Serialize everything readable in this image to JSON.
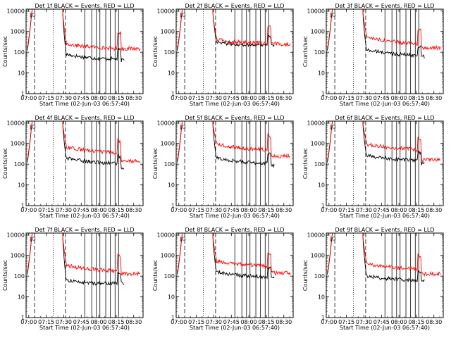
{
  "chart_data": [
    {
      "type": "line",
      "title": "Det 1f BLACK = Events, RED = LLD",
      "xlabel": "Start Time (02-Jun-03 06:57:40)",
      "ylabel": "Counts/sec",
      "events_level": [
        60,
        50,
        48,
        40
      ],
      "lld_level": [
        200,
        170,
        150,
        150
      ]
    },
    {
      "type": "line",
      "title": "Det 2f BLACK = Events, RED = LLD",
      "xlabel": "Start Time (02-Jun-03 06:57:40)",
      "ylabel": "Counts/sec",
      "events_level": [
        250,
        230,
        230,
        200
      ],
      "lld_level": [
        320,
        290,
        270,
        250
      ]
    },
    {
      "type": "line",
      "title": "Det 3f BLACK = Events, RED = LLD",
      "xlabel": "Start Time (02-Jun-03 06:57:40)",
      "ylabel": "Counts/sec",
      "events_level": [
        100,
        80,
        70,
        60
      ],
      "lld_level": [
        400,
        300,
        250,
        160
      ]
    },
    {
      "type": "line",
      "title": "Det 4f BLACK = Events, RED = LLD",
      "xlabel": "Start Time (02-Jun-03 06:57:40)",
      "ylabel": "Counts/sec",
      "events_level": [
        150,
        120,
        110,
        60
      ],
      "lld_level": [
        500,
        400,
        350,
        140
      ]
    },
    {
      "type": "line",
      "title": "Det 5f BLACK = Events, RED = LLD",
      "xlabel": "Start Time (02-Jun-03 06:57:40)",
      "ylabel": "Counts/sec",
      "events_level": [
        150,
        120,
        110,
        90
      ],
      "lld_level": [
        700,
        550,
        500,
        250
      ]
    },
    {
      "type": "line",
      "title": "Det 6f BLACK = Events, RED = LLD",
      "xlabel": "Start Time (02-Jun-03 06:57:40)",
      "ylabel": "Counts/sec",
      "events_level": [
        200,
        170,
        150,
        100
      ],
      "lld_level": [
        700,
        600,
        500,
        160
      ]
    },
    {
      "type": "line",
      "title": "Det 7f BLACK = Events, RED = LLD",
      "xlabel": "Start Time (02-Jun-03 06:57:40)",
      "ylabel": "Counts/sec",
      "events_level": [
        50,
        45,
        45,
        45
      ],
      "lld_level": [
        250,
        200,
        180,
        130
      ]
    },
    {
      "type": "line",
      "title": "Det 8f BLACK = Events, RED = LLD",
      "xlabel": "Start Time (02-Jun-03 06:57:40)",
      "ylabel": "Counts/sec",
      "events_level": [
        120,
        100,
        90,
        80
      ],
      "lld_level": [
        400,
        350,
        300,
        140
      ]
    },
    {
      "type": "line",
      "title": "Det 9f BLACK = Events, RED = LLD",
      "xlabel": "Start Time (02-Jun-03 06:57:40)",
      "ylabel": "Counts/sec",
      "events_level": [
        80,
        70,
        60,
        60
      ],
      "lld_level": [
        300,
        250,
        220,
        130
      ]
    }
  ],
  "shared": {
    "x_ticks": [
      "07:00",
      "07:15",
      "07:30",
      "07:45",
      "08:00",
      "08:15",
      "08:30"
    ],
    "x_tick_minutes": [
      0,
      15,
      30,
      45,
      60,
      75,
      90
    ],
    "xlim_minutes": [
      -2.3,
      98
    ],
    "y_ticks": [
      "1",
      "10",
      "100",
      "1000",
      "10000"
    ],
    "ylim": [
      1,
      12000
    ],
    "y_scale": "log",
    "markers": [
      {
        "t": 5,
        "style": "dashed"
      },
      {
        "t": 21,
        "style": "dotted"
      },
      {
        "t": 31.5,
        "style": "dashed"
      },
      {
        "t": 48,
        "style": "solid"
      },
      {
        "t": 54,
        "style": "solid"
      },
      {
        "t": 58,
        "style": "solid"
      },
      {
        "t": 61,
        "style": "solid"
      },
      {
        "t": 66,
        "style": "solid"
      },
      {
        "t": 70,
        "style": "solid"
      },
      {
        "t": 74,
        "style": "solid"
      },
      {
        "t": 77,
        "style": "solid"
      }
    ],
    "events_color": "#000000",
    "lld_color": "#ff0000"
  }
}
